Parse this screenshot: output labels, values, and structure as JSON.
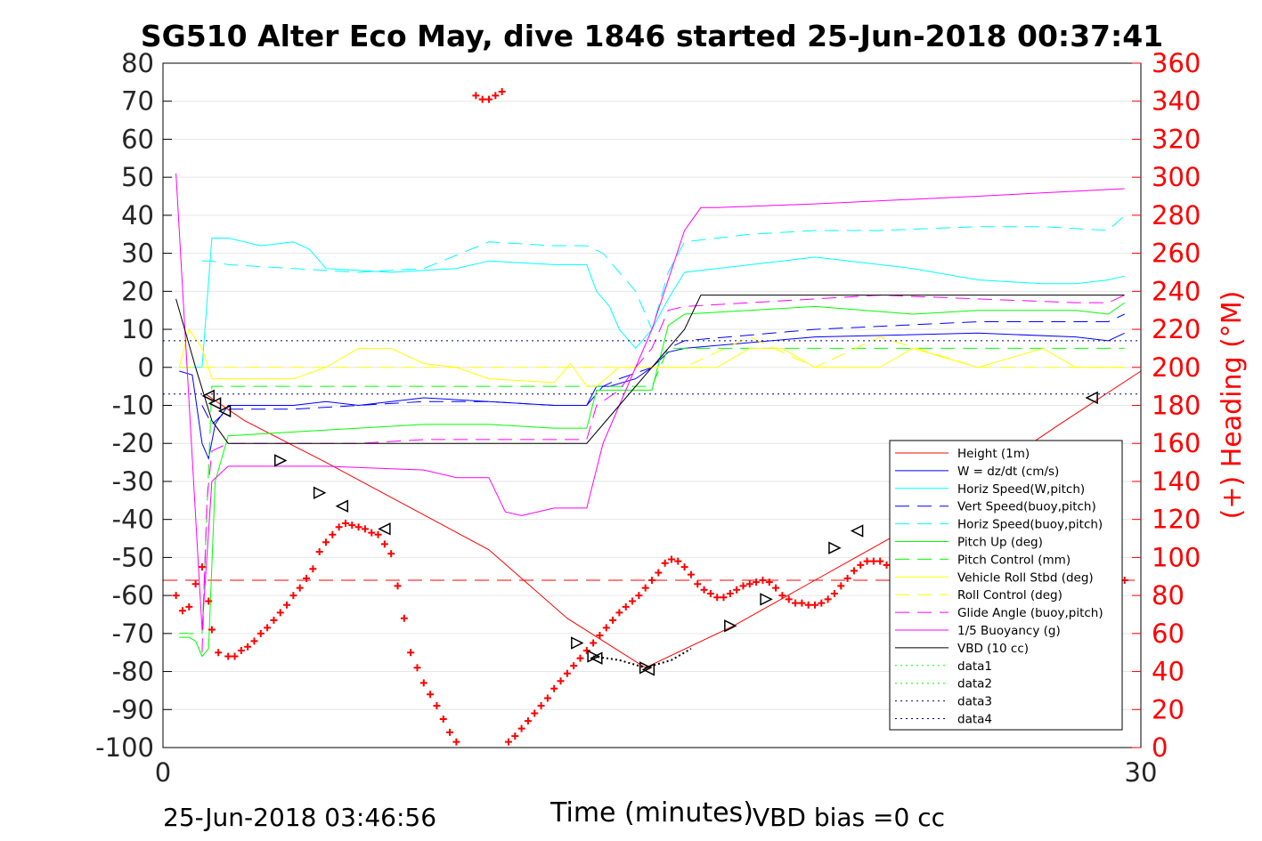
{
  "title": "SG510 Alter Eco May, dive 1846 started 25-Jun-2018 00:37:41",
  "footer": {
    "left": "25-Jun-2018 03:46:56",
    "right": "VBD bias =0 cc"
  },
  "colors": {
    "height": "#ff0000",
    "w": "#0000ff",
    "horiz_w": "#00ffff",
    "pitch": "#00ff00",
    "roll": "#ffff00",
    "glide": "#ff00ff",
    "buoy": "#ff00ff",
    "vbd": "#000000",
    "heading": "#ff0000",
    "data34": "#000080"
  },
  "chart_data": {
    "type": "line",
    "xlabel": "Time (minutes)",
    "ylabel_right": "(+) Heading (°M)",
    "xlim": [
      0,
      30
    ],
    "ylim": [
      -100,
      80
    ],
    "ylim_right": [
      0,
      360
    ],
    "x_ticks": [
      0,
      30
    ],
    "y_ticks": [
      80,
      70,
      60,
      50,
      40,
      30,
      20,
      10,
      0,
      -10,
      -20,
      -30,
      -40,
      -50,
      -60,
      -70,
      -80,
      -90,
      -100
    ],
    "y_right_ticks": [
      360,
      340,
      320,
      300,
      280,
      260,
      240,
      220,
      200,
      180,
      160,
      140,
      120,
      100,
      80,
      60,
      40,
      20,
      0
    ],
    "grid": true,
    "legend_position": "lower-right",
    "series": [
      {
        "name": "Height (1m)",
        "style": "solid",
        "color": "#ff0000",
        "x": [
          1.3,
          2.5,
          5,
          10,
          12.4,
          14.8,
          17.5,
          20,
          22.5,
          27.5,
          30
        ],
        "y": [
          -7,
          -14,
          -25,
          -48,
          -66,
          -79,
          -68,
          -56,
          -44,
          -15,
          -1
        ]
      },
      {
        "name": "W = dz/dt (cm/s)",
        "style": "solid",
        "color": "#0000ff",
        "x": [
          0.5,
          0.9,
          1.2,
          1.4,
          1.6,
          2,
          4,
          5,
          6,
          8,
          10,
          12,
          13,
          13.3,
          13.7,
          14.5,
          15,
          15.5,
          16,
          20,
          25,
          28,
          29,
          29.5
        ],
        "y": [
          -1,
          -2,
          -20,
          -24,
          -15,
          -10,
          -10,
          -9,
          -10,
          -8,
          -9,
          -10,
          -10,
          -5,
          -5,
          -3,
          0,
          4,
          5,
          8,
          9,
          8,
          7,
          9
        ]
      },
      {
        "name": "Horiz Speed(W,pitch)",
        "style": "solid",
        "color": "#00ffff",
        "x": [
          0.5,
          0.9,
          1.2,
          1.5,
          2,
          3,
          4,
          4.5,
          5,
          7,
          9,
          10,
          12,
          13,
          13.3,
          13.7,
          14,
          14.5,
          15,
          15.5,
          16,
          20,
          23,
          25,
          27,
          28,
          29,
          29.5
        ],
        "y": [
          0,
          0,
          0,
          34,
          34,
          32,
          33,
          31,
          26,
          25,
          26,
          28,
          27,
          27,
          20,
          16,
          10,
          5,
          10,
          18,
          25,
          29,
          26,
          23,
          22,
          22,
          23,
          24
        ]
      },
      {
        "name": "Vert Speed(buoy,pitch)",
        "style": "dashed",
        "color": "#0000ff",
        "x": [
          1.2,
          1.5,
          2,
          4,
          6,
          8,
          10,
          12,
          13,
          13.5,
          14,
          15,
          15.5,
          16,
          20,
          25,
          29,
          29.5
        ],
        "y": [
          -10,
          -15,
          -11,
          -11,
          -10,
          -9,
          -9,
          -10,
          -10,
          -5,
          -3,
          0,
          5,
          7,
          10,
          12,
          12,
          14
        ]
      },
      {
        "name": "Horiz Speed(buoy,pitch)",
        "style": "dashed",
        "color": "#00ffff",
        "x": [
          1.2,
          1.5,
          2,
          4,
          6,
          8,
          10,
          12,
          13,
          13.5,
          14,
          14.5,
          15,
          15.5,
          16,
          18,
          20,
          22,
          25,
          27,
          29,
          29.5
        ],
        "y": [
          28,
          28,
          27,
          26,
          25,
          26,
          33,
          32,
          32,
          30,
          25,
          20,
          10,
          25,
          33,
          35,
          36,
          36,
          37,
          37,
          36,
          40
        ]
      },
      {
        "name": "Pitch Up (deg)",
        "style": "solid",
        "color": "#00ff00",
        "x": [
          0.5,
          0.8,
          1.0,
          1.2,
          1.4,
          1.6,
          2,
          4,
          6,
          8,
          10,
          12,
          13,
          13.3,
          14,
          14.5,
          15,
          15.5,
          16,
          20,
          23,
          25,
          28,
          29,
          29.5
        ],
        "y": [
          -71,
          -71,
          -72,
          -76,
          -74,
          -30,
          -18,
          -17,
          -16,
          -15,
          -15,
          -16,
          -16,
          -6,
          -6,
          -6,
          -6,
          11,
          14,
          16,
          14,
          15,
          15,
          14,
          17
        ]
      },
      {
        "name": "Pitch Control (mm)",
        "style": "dashed",
        "color": "#00ff00",
        "x": [
          0.5,
          1.2,
          1.5,
          2,
          13,
          13.3,
          14,
          14.5,
          15,
          15.5,
          29.5
        ],
        "y": [
          -70,
          -70,
          -5,
          -5,
          -5,
          -5,
          -5,
          -5,
          -5,
          5,
          5
        ]
      },
      {
        "name": "Vehicle Roll Stbd (deg)",
        "style": "solid",
        "color": "#ffff00",
        "x": [
          0.5,
          0.8,
          1.2,
          1.5,
          2,
          4,
          5,
          6,
          7,
          8,
          9,
          10,
          12,
          12.5,
          13,
          13.3,
          14,
          15,
          16,
          17,
          18,
          19,
          20,
          22,
          23,
          25,
          27,
          28,
          29,
          29.5
        ],
        "y": [
          0,
          10,
          5,
          -3,
          -3,
          -3,
          0,
          5,
          5,
          1,
          0,
          -3,
          -4,
          1,
          -5,
          -5,
          0,
          0,
          0,
          0,
          5,
          5,
          0,
          0,
          5,
          0,
          5,
          0,
          0,
          0
        ]
      },
      {
        "name": "Roll Control (deg)",
        "style": "dashed",
        "color": "#ffff00",
        "x": [
          0.5,
          1.2,
          2,
          5,
          13,
          14,
          15,
          16,
          18,
          20,
          22,
          25,
          28,
          29.5
        ],
        "y": [
          0,
          0,
          0,
          0,
          0,
          0,
          0,
          0,
          8,
          0,
          8,
          0,
          0,
          0
        ]
      },
      {
        "name": "Glide Angle (buoy,pitch)",
        "style": "dashed",
        "color": "#ff00ff",
        "x": [
          1.2,
          1.35,
          1.5,
          2,
          4,
          6,
          8,
          10,
          12,
          13,
          13.3,
          14,
          14.5,
          15,
          15.5,
          16,
          18,
          20,
          22,
          25,
          28,
          29,
          29.5
        ],
        "y": [
          -75,
          -35,
          -22,
          -20,
          -20,
          -20,
          -19,
          -19,
          -19,
          -19,
          -10,
          -6,
          0,
          5,
          15,
          16,
          17,
          18,
          19,
          18,
          17,
          17,
          19
        ]
      },
      {
        "name": "1/5 Buoyancy (g)",
        "style": "solid",
        "color": "#ff00ff",
        "x": [
          0.4,
          1.2,
          1.5,
          2,
          5,
          8,
          9,
          10,
          10.5,
          11,
          12,
          13,
          13.5,
          14,
          15,
          16,
          16.5,
          17,
          20,
          25,
          29.5
        ],
        "y": [
          51,
          -69,
          -30,
          -26,
          -26,
          -27,
          -29,
          -29,
          -38,
          -39,
          -37,
          -37,
          -20,
          -10,
          10,
          36,
          42,
          42,
          43,
          45,
          47
        ]
      },
      {
        "name": "VBD (10 cc)",
        "style": "solid",
        "color": "#000000",
        "x": [
          0.4,
          1.0,
          1.5,
          2,
          4,
          8,
          12,
          13,
          14,
          15,
          16,
          16.5,
          17,
          20,
          25,
          29.5
        ],
        "y": [
          18,
          0,
          -14,
          -20,
          -20,
          -20,
          -20,
          -20,
          -10,
          0,
          10,
          19,
          19,
          19,
          19,
          19
        ]
      },
      {
        "name": "data1",
        "style": "dotted",
        "color": "#00ff00",
        "x": [],
        "y": []
      },
      {
        "name": "data2",
        "style": "dotted",
        "color": "#00ff00",
        "x": [],
        "y": []
      },
      {
        "name": "data3",
        "style": "dotted",
        "color": "#000080",
        "x": [
          0,
          30
        ],
        "y": [
          7,
          7
        ]
      },
      {
        "name": "data4",
        "style": "dotted",
        "color": "#000080",
        "x": [
          0,
          30
        ],
        "y": [
          -7,
          -7
        ]
      }
    ],
    "heading_reference_deg": 88,
    "heading_points_deg": [
      [
        0.4,
        80
      ],
      [
        0.6,
        72
      ],
      [
        0.8,
        74
      ],
      [
        1.0,
        86
      ],
      [
        1.2,
        95
      ],
      [
        1.4,
        77
      ],
      [
        1.5,
        62
      ],
      [
        1.7,
        50
      ],
      [
        2,
        48
      ],
      [
        2.2,
        48
      ],
      [
        2.4,
        51
      ],
      [
        2.6,
        53
      ],
      [
        2.8,
        56
      ],
      [
        3,
        60
      ],
      [
        3.2,
        63
      ],
      [
        3.4,
        67
      ],
      [
        3.6,
        71
      ],
      [
        3.8,
        75
      ],
      [
        4,
        80
      ],
      [
        4.2,
        84
      ],
      [
        4.4,
        89
      ],
      [
        4.6,
        94
      ],
      [
        4.8,
        103
      ],
      [
        5,
        108
      ],
      [
        5.2,
        112
      ],
      [
        5.4,
        116
      ],
      [
        5.6,
        118
      ],
      [
        5.8,
        117
      ],
      [
        6,
        116
      ],
      [
        6.2,
        115
      ],
      [
        6.4,
        113
      ],
      [
        6.6,
        112
      ],
      [
        6.8,
        107
      ],
      [
        7,
        102
      ],
      [
        7.2,
        85
      ],
      [
        7.4,
        68
      ],
      [
        7.6,
        50
      ],
      [
        7.8,
        42
      ],
      [
        8,
        34
      ],
      [
        8.2,
        28
      ],
      [
        8.4,
        22
      ],
      [
        8.6,
        15
      ],
      [
        8.8,
        8
      ],
      [
        9,
        3
      ],
      [
        9.6,
        343
      ],
      [
        9.8,
        341
      ],
      [
        10,
        341
      ],
      [
        10.2,
        343
      ],
      [
        10.4,
        345
      ],
      [
        10.6,
        3
      ],
      [
        10.8,
        6
      ],
      [
        11,
        10
      ],
      [
        11.2,
        14
      ],
      [
        11.4,
        18
      ],
      [
        11.6,
        22
      ],
      [
        11.8,
        26
      ],
      [
        12,
        31
      ],
      [
        12.2,
        35
      ],
      [
        12.4,
        39
      ],
      [
        12.6,
        43
      ],
      [
        12.8,
        47
      ],
      [
        13,
        51
      ],
      [
        13.2,
        55
      ],
      [
        13.4,
        59
      ],
      [
        13.6,
        63
      ],
      [
        13.8,
        67
      ],
      [
        14,
        71
      ],
      [
        14.2,
        74
      ],
      [
        14.4,
        77
      ],
      [
        14.6,
        80
      ],
      [
        14.8,
        84
      ],
      [
        15,
        88
      ],
      [
        15.2,
        92
      ],
      [
        15.4,
        97
      ],
      [
        15.6,
        99
      ],
      [
        15.8,
        98
      ],
      [
        16,
        95
      ],
      [
        16.2,
        91
      ],
      [
        16.4,
        86
      ],
      [
        16.6,
        83
      ],
      [
        16.8,
        81
      ],
      [
        17,
        79
      ],
      [
        17.2,
        79
      ],
      [
        17.4,
        81
      ],
      [
        17.6,
        83
      ],
      [
        17.8,
        85
      ],
      [
        18,
        86
      ],
      [
        18.2,
        87
      ],
      [
        18.4,
        88
      ],
      [
        18.6,
        87
      ],
      [
        18.8,
        84
      ],
      [
        19,
        80
      ],
      [
        19.2,
        78
      ],
      [
        19.4,
        76
      ],
      [
        19.6,
        76
      ],
      [
        19.8,
        75
      ],
      [
        20,
        75
      ],
      [
        20.2,
        76
      ],
      [
        20.4,
        78
      ],
      [
        20.6,
        81
      ],
      [
        20.8,
        85
      ],
      [
        21,
        89
      ],
      [
        21.2,
        93
      ],
      [
        21.4,
        96
      ],
      [
        21.6,
        98
      ],
      [
        21.8,
        98
      ],
      [
        22,
        98
      ],
      [
        22.2,
        96
      ],
      [
        22.4,
        92
      ],
      [
        22.6,
        88
      ],
      [
        22.8,
        85
      ],
      [
        23,
        83
      ],
      [
        23.2,
        81
      ],
      [
        23.4,
        80
      ],
      [
        23.6,
        78
      ],
      [
        23.8,
        76
      ],
      [
        24,
        76
      ],
      [
        24.2,
        75
      ],
      [
        24.4,
        74
      ],
      [
        24.6,
        73
      ],
      [
        24.8,
        73
      ],
      [
        25,
        74
      ],
      [
        25.2,
        78
      ],
      [
        25.6,
        84
      ],
      [
        25.8,
        90
      ],
      [
        26,
        95
      ],
      [
        26.2,
        103
      ],
      [
        26.4,
        106
      ],
      [
        26.6,
        108
      ],
      [
        26.8,
        100
      ],
      [
        27.1,
        80
      ],
      [
        27.3,
        77
      ],
      [
        29.3,
        93
      ],
      [
        29.5,
        88
      ]
    ],
    "turn_markers": [
      {
        "x": 1.4,
        "y": -7.5,
        "dir": "left"
      },
      {
        "x": 1.6,
        "y": -9.5,
        "dir": "left"
      },
      {
        "x": 1.9,
        "y": -11.5,
        "dir": "left"
      },
      {
        "x": 3.6,
        "y": -24.5,
        "dir": "right"
      },
      {
        "x": 4.8,
        "y": -33,
        "dir": "right"
      },
      {
        "x": 5.5,
        "y": -36.5,
        "dir": "left"
      },
      {
        "x": 6.8,
        "y": -42.5,
        "dir": "left"
      },
      {
        "x": 12.7,
        "y": -72.5,
        "dir": "right"
      },
      {
        "x": 13.2,
        "y": -76,
        "dir": "right"
      },
      {
        "x": 13.3,
        "y": -76.5,
        "dir": "left"
      },
      {
        "x": 14.8,
        "y": -79,
        "dir": "right"
      },
      {
        "x": 14.9,
        "y": -79.5,
        "dir": "left"
      },
      {
        "x": 17.4,
        "y": -68,
        "dir": "right"
      },
      {
        "x": 18.5,
        "y": -61,
        "dir": "right"
      },
      {
        "x": 20.6,
        "y": -47.5,
        "dir": "right"
      },
      {
        "x": 21.3,
        "y": -43,
        "dir": "left"
      },
      {
        "x": 28.5,
        "y": -8,
        "dir": "left"
      }
    ],
    "dotted_segment": {
      "x": [
        13.2,
        14,
        14.8,
        15.6,
        16.2
      ],
      "y": [
        -76,
        -77,
        -79,
        -77,
        -74
      ]
    }
  }
}
